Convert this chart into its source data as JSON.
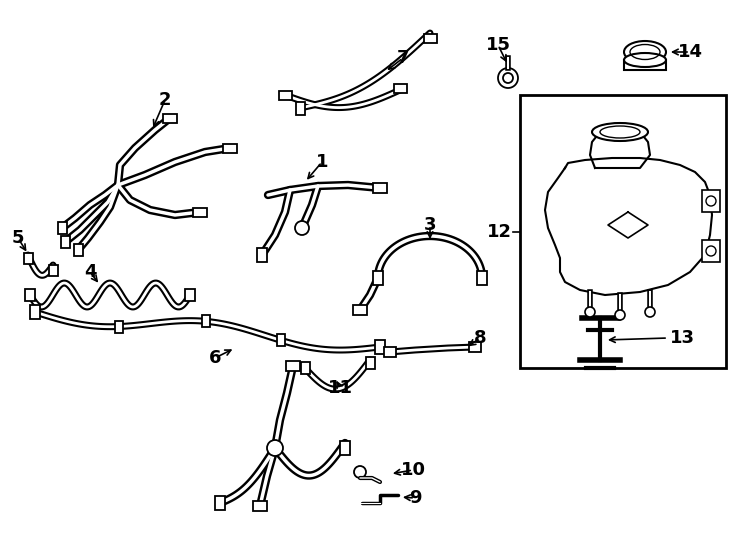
{
  "bg": "#ffffff",
  "lc": "#000000",
  "figsize": [
    7.34,
    5.4
  ],
  "dpi": 100,
  "lw_outer": 5.5,
  "lw_inner": 2.0,
  "lw_thin": 1.5,
  "label_fontsize": 13
}
